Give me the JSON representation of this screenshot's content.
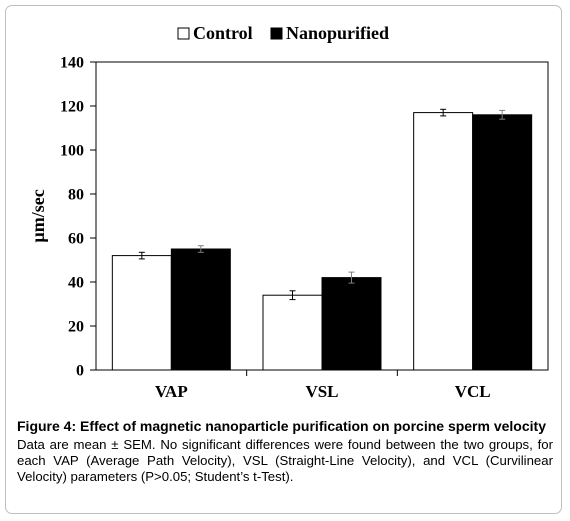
{
  "chart_data": {
    "type": "bar",
    "ylabel": "µm/sec",
    "xlabel": "",
    "title": "",
    "ylim": [
      0,
      140
    ],
    "yticks": [
      0,
      20,
      40,
      60,
      80,
      100,
      120,
      140
    ],
    "categories": [
      "VAP",
      "VSL",
      "VCL"
    ],
    "series": [
      {
        "name": "Control",
        "values": [
          52,
          34,
          117
        ],
        "errors": [
          1.5,
          2.0,
          1.5
        ],
        "color": "#ffffff"
      },
      {
        "name": "Nanopurified",
        "values": [
          55,
          42,
          116
        ],
        "errors": [
          1.5,
          2.5,
          2.0
        ],
        "color": "#000000"
      }
    ],
    "legend_position": "top",
    "grid": false
  },
  "caption": {
    "title": "Figure 4: Effect of magnetic nanoparticle purification on porcine sperm velocity",
    "body": "Data are mean ± SEM. No significant differences were found between the two groups, for each VAP (Average Path Velocity), VSL (Straight-Line Velocity), and VCL (Curvilinear Velocity) parameters (P>0.05; Student’s t-Test)."
  }
}
